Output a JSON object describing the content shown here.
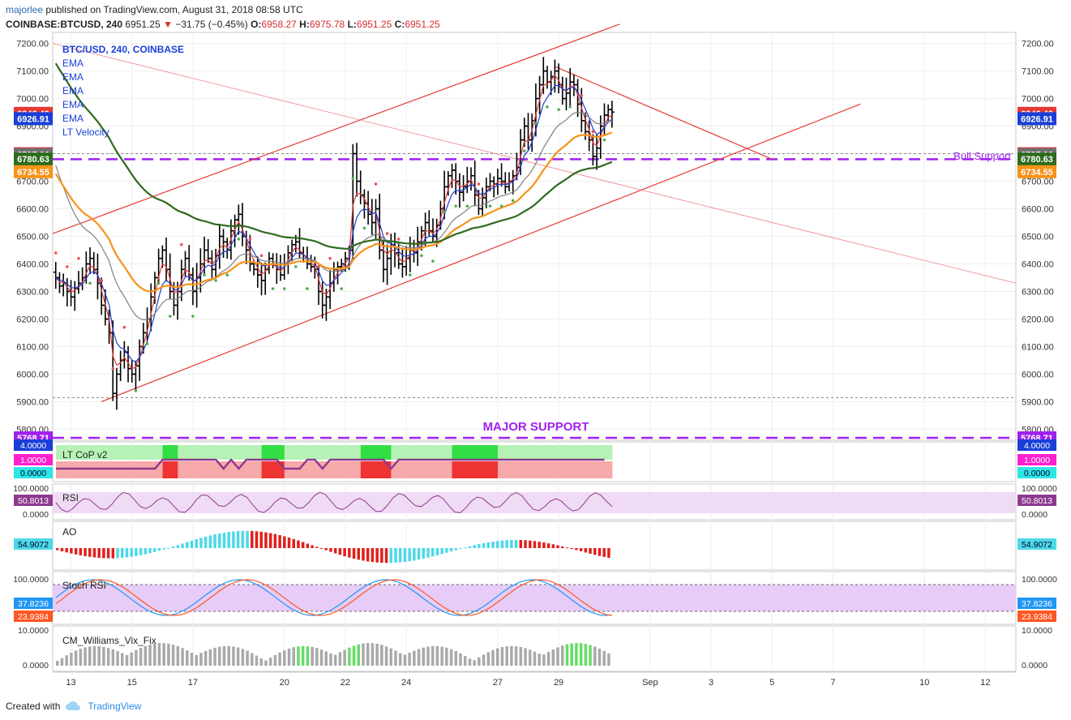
{
  "header": {
    "author": "majorlee",
    "published": "published on TradingView.com, August 31, 2018 08:58 UTC",
    "symbol": "COINBASE:BTCUSD, 240",
    "last": "6951.25",
    "change_arrow": "▼",
    "change": "−31.75 (−0.45%)",
    "o_label": "O:",
    "o": "6958.27",
    "h_label": "H:",
    "h": "6975.78",
    "l_label": "L:",
    "l": "6951.25",
    "c_label": "C:",
    "c": "6951.25"
  },
  "legend": {
    "title": "BTC/USD, 240, COINBASE",
    "items": [
      "EMA",
      "EMA",
      "EMA",
      "EMA",
      "EMA",
      "LT Velocity"
    ]
  },
  "annotations": {
    "bull_support": "Bull Support",
    "major_support": "MAJOR SUPPORT"
  },
  "footer": {
    "created_with": "Created with",
    "brand": "TradingView"
  },
  "colors": {
    "accent_blue": "#1a3fd8",
    "trend_red": "#e53935",
    "support_purple": "#a020f0",
    "ema_green": "#2e6b1e",
    "ema_orange": "#f7931a",
    "ema_gray": "#808080",
    "ema_red": "#e53935",
    "ema_blue": "#1a3fd8",
    "ao_up": "#4dd9e8",
    "ao_down": "#e0201c",
    "rsi_line": "#8e3a8e",
    "stoch_k": "#2196f3",
    "stoch_d": "#ff5722",
    "vix_bar": "#a9a9a9",
    "vix_hi": "#66dd66"
  },
  "chart_data": [
    {
      "type": "candlestick",
      "title": "BTC/USD, 240, COINBASE",
      "y_ticks": [
        "7200.00",
        "7100.00",
        "7000.00",
        "6900.00",
        "6800.00",
        "6700.00",
        "6600.00",
        "6500.00",
        "6400.00",
        "6300.00",
        "6200.00",
        "6100.00",
        "6000.00",
        "5900.00",
        "5800.00"
      ],
      "y_tick_values": [
        7200,
        7100,
        7000,
        6900,
        6800,
        6700,
        6600,
        6500,
        6400,
        6300,
        6200,
        6100,
        6000,
        5900,
        5800
      ],
      "ylim": [
        5760,
        7240
      ],
      "x_ticks": [
        "13",
        "15",
        "17",
        "20",
        "22",
        "24",
        "27",
        "29",
        "Sep",
        "3",
        "5",
        "7",
        "10",
        "12"
      ],
      "x_tick_days": [
        13,
        15,
        17,
        20,
        22,
        24,
        27,
        29,
        32,
        34,
        36,
        38,
        41,
        43
      ],
      "day_range": [
        12.4,
        44.0
      ],
      "price_labels": [
        {
          "value": 6946.4,
          "text": "6946.40",
          "color": "#e53935"
        },
        {
          "value": 6926.91,
          "text": "6926.91",
          "color": "#1a3fd8"
        },
        {
          "value": 6800.0,
          "text": "6800.00",
          "color": "#e53935"
        },
        {
          "value": 6797.06,
          "text": "6797.06",
          "color": "#707070"
        },
        {
          "value": 6780.63,
          "text": "6780.63",
          "color": "#2e6b1e"
        },
        {
          "value": 6734.55,
          "text": "6734.55",
          "color": "#f7931a"
        },
        {
          "value": 5768.71,
          "text": "5768.71",
          "color": "#a020f0"
        }
      ],
      "levels": [
        {
          "name": "bull_support",
          "value": 6780,
          "style": "dashed",
          "color": "#a020f0"
        },
        {
          "name": "major_support",
          "value": 5768.71,
          "style": "dashed",
          "color": "#a020f0"
        },
        {
          "name": "ref_6800",
          "value": 6800,
          "style": "dotted",
          "color": "#888888"
        },
        {
          "name": "ref_5915",
          "value": 5915,
          "style": "dotted",
          "color": "#888888"
        }
      ],
      "trendlines": [
        {
          "from": [
            12.4,
            6510
          ],
          "to": [
            31.0,
            7270
          ],
          "color": "#e53935",
          "width": 1.2
        },
        {
          "from": [
            14.0,
            5900
          ],
          "to": [
            38.9,
            6980
          ],
          "color": "#e53935",
          "width": 1.2
        },
        {
          "from": [
            28.9,
            7115
          ],
          "to": [
            36.0,
            6780
          ],
          "color": "#e53935",
          "width": 1.2
        },
        {
          "from": [
            12.4,
            7200
          ],
          "to": [
            44.0,
            6330
          ],
          "color": "#f08080",
          "width": 0.8
        }
      ],
      "close_series": [
        6350,
        6320,
        6330,
        6300,
        6280,
        6310,
        6330,
        6350,
        6400,
        6420,
        6380,
        6330,
        6250,
        6200,
        6150,
        5930,
        6000,
        6050,
        6080,
        6020,
        6000,
        6030,
        6100,
        6150,
        6200,
        6280,
        6350,
        6420,
        6450,
        6380,
        6300,
        6250,
        6300,
        6380,
        6420,
        6360,
        6300,
        6350,
        6400,
        6450,
        6420,
        6380,
        6430,
        6500,
        6480,
        6450,
        6520,
        6560,
        6580,
        6500,
        6450,
        6400,
        6380,
        6360,
        6340,
        6380,
        6420,
        6400,
        6380,
        6360,
        6400,
        6440,
        6470,
        6480,
        6440,
        6420,
        6400,
        6390,
        6380,
        6300,
        6250,
        6280,
        6330,
        6380,
        6390,
        6400,
        6420,
        6450,
        6800,
        6700,
        6650,
        6620,
        6580,
        6550,
        6600,
        6450,
        6380,
        6420,
        6470,
        6440,
        6400,
        6390,
        6420,
        6450,
        6440,
        6480,
        6520,
        6550,
        6520,
        6500,
        6540,
        6600,
        6680,
        6720,
        6740,
        6700,
        6660,
        6680,
        6700,
        6720,
        6650,
        6600,
        6640,
        6680,
        6700,
        6690,
        6710,
        6700,
        6680,
        6700,
        6720,
        6750,
        6850,
        6900,
        6850,
        6920,
        7000,
        7050,
        7100,
        7060,
        7080,
        7100,
        7050,
        7000,
        7020,
        7060,
        7050,
        6980,
        6920,
        6880,
        6850,
        6790,
        6820,
        6900,
        6940,
        6960,
        6951
      ],
      "ema_series": [
        {
          "name": "EMA fast",
          "color": "#e53935"
        },
        {
          "name": "EMA",
          "color": "#1a3fd8"
        },
        {
          "name": "EMA",
          "color": "#808080"
        },
        {
          "name": "EMA",
          "color": "#f7931a"
        },
        {
          "name": "EMA slow",
          "color": "#2e6b1e"
        }
      ]
    },
    {
      "type": "area",
      "title": "LT CoP v2",
      "y_ticks": [
        "4.0000",
        "1.0000",
        "0.0000"
      ],
      "values": [
        0,
        0,
        0,
        0,
        0,
        0,
        0,
        0,
        0,
        0,
        0,
        0,
        0,
        0,
        1,
        1,
        1,
        1,
        1,
        1,
        1,
        1,
        0,
        1,
        0,
        1,
        1,
        1,
        1,
        1,
        0,
        0,
        0,
        1,
        1,
        0,
        1,
        1,
        1,
        1,
        1,
        1,
        1,
        1,
        0,
        1,
        1,
        1,
        1,
        1,
        1,
        1,
        1,
        1,
        1,
        1,
        1,
        1,
        1,
        1,
        1,
        1,
        1,
        1,
        1,
        1,
        1,
        1,
        1,
        1,
        1,
        1,
        1
      ]
    },
    {
      "type": "line",
      "title": "RSI",
      "y_ticks": [
        "100.0000",
        "50.8013",
        "0.0000"
      ],
      "ylim": [
        0,
        100
      ]
    },
    {
      "type": "bar",
      "title": "AO",
      "y_ticks": [
        "54.9072"
      ]
    },
    {
      "type": "line",
      "title": "Stoch RSI",
      "y_ticks": [
        "100.0000",
        "37.8236",
        "23.9384"
      ],
      "ylim": [
        0,
        100
      ]
    },
    {
      "type": "bar",
      "title": "CM_Williams_Vix_Fix",
      "y_ticks": [
        "10.0000",
        "0.0000"
      ],
      "ylim": [
        0,
        10
      ]
    }
  ]
}
